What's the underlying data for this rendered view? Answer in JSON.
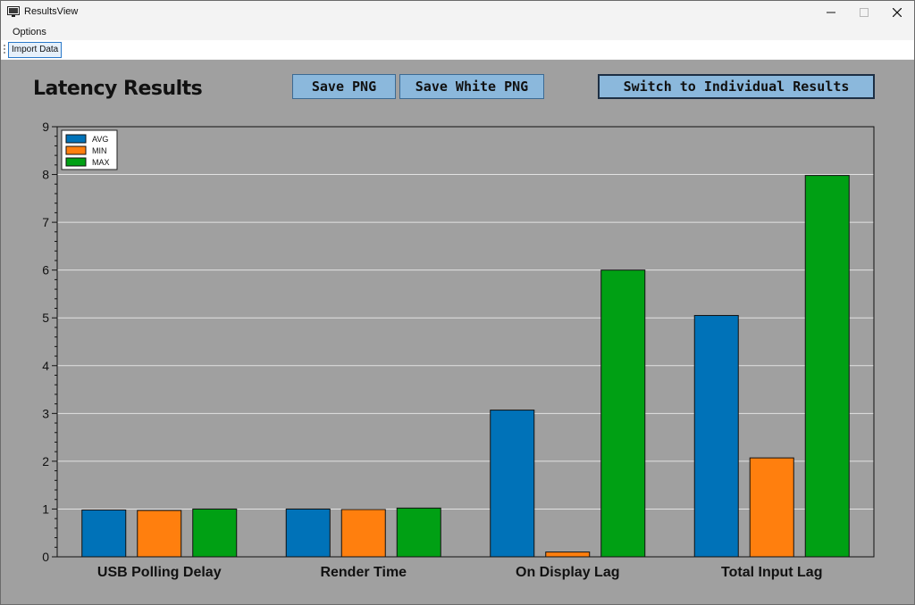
{
  "window": {
    "title": "ResultsView",
    "icon": "monitor-icon",
    "controls": [
      "minimize-icon",
      "maximize-icon",
      "close-icon"
    ]
  },
  "menu": {
    "items": [
      {
        "label": "Options"
      }
    ]
  },
  "toolbar": {
    "import_label": "Import Data"
  },
  "main": {
    "heading": "Latency Results",
    "buttons": {
      "save_png": "Save PNG",
      "save_white_png": "Save White PNG",
      "switch": "Switch to Individual Results"
    }
  },
  "chart_data": {
    "type": "bar",
    "title": "",
    "xlabel": "",
    "ylabel": "",
    "categories": [
      "USB Polling Delay",
      "Render Time",
      "On Display Lag",
      "Total Input Lag"
    ],
    "series": [
      {
        "name": "AVG",
        "color": "#0072b8",
        "values": [
          0.98,
          1.0,
          3.07,
          5.05
        ]
      },
      {
        "name": "MIN",
        "color": "#ff7f0e",
        "values": [
          0.97,
          0.99,
          0.1,
          2.07
        ]
      },
      {
        "name": "MAX",
        "color": "#00a014",
        "values": [
          1.0,
          1.02,
          6.0,
          7.98
        ]
      }
    ],
    "ylim": [
      0,
      9
    ],
    "yticks": [
      "0",
      "1",
      "2",
      "3",
      "4",
      "5",
      "6",
      "7",
      "8",
      "9"
    ],
    "grid": true,
    "legend": "top-left",
    "background": "#a0a0a0"
  }
}
